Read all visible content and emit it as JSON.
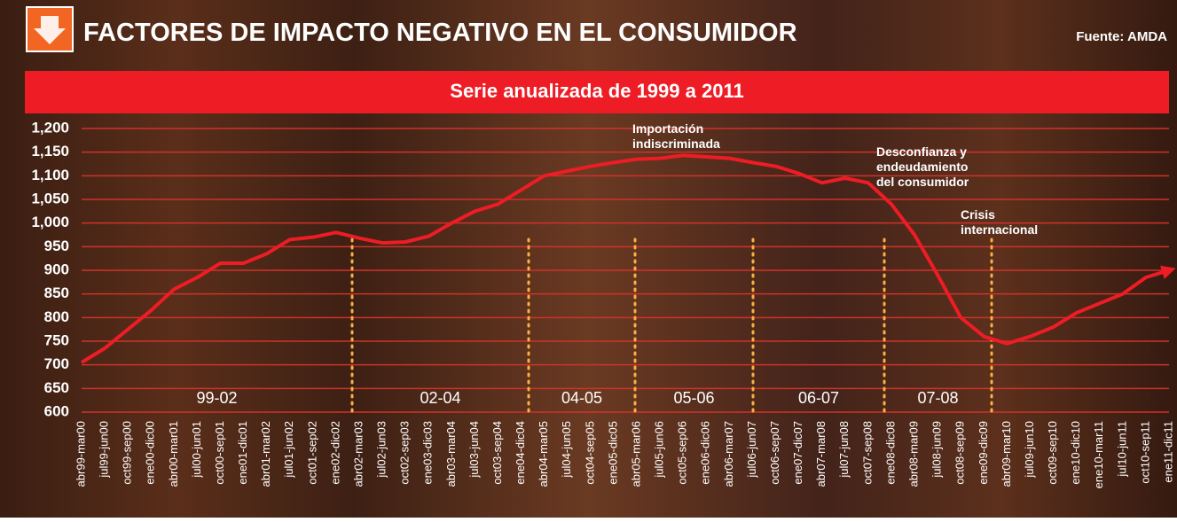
{
  "chart_data": {
    "type": "line",
    "title": "FACTORES DE IMPACTO NEGATIVO EN EL CONSUMIDOR",
    "source": "Fuente: AMDA",
    "subtitle": "Serie anualizada de 1999 a 2011",
    "categories": [
      "abr99-mar00",
      "jul99-jun00",
      "oct99-sep00",
      "ene00-dic00",
      "abr00-mar01",
      "jul00-jun01",
      "oct00-sep01",
      "ene01-dic01",
      "abr01-mar02",
      "jul01-jun02",
      "oct01-sep02",
      "ene02-dic02",
      "abr02-mar03",
      "jul02-jun03",
      "oct02-sep03",
      "ene03-dic03",
      "abr03-mar04",
      "jul03-jun04",
      "oct03-sep04",
      "ene04-dic04",
      "abr04-mar05",
      "jul04-jun05",
      "oct04-sep05",
      "ene05-dic05",
      "abr05-mar06",
      "jul05-jun06",
      "oct05-sep06",
      "ene06-dic06",
      "abr06-mar07",
      "jul06-jun07",
      "oct06-sep07",
      "ene07-dic07",
      "abr07-mar08",
      "jul07-jun08",
      "oct07-sep08",
      "ene08-dic08",
      "abr08-mar09",
      "jul08-jun09",
      "oct08-sep09",
      "ene09-dic09",
      "abr09-mar10",
      "jul09-jun10",
      "oct09-sep10",
      "ene10-dic10",
      "ene10-mar11",
      "jul10-jun11",
      "oct10-sep11",
      "ene11-dic11"
    ],
    "values": [
      705,
      735,
      775,
      815,
      860,
      885,
      915,
      915,
      935,
      965,
      970,
      980,
      968,
      958,
      960,
      972,
      1000,
      1025,
      1040,
      1070,
      1100,
      1110,
      1120,
      1128,
      1135,
      1137,
      1143,
      1140,
      1137,
      1128,
      1120,
      1105,
      1085,
      1095,
      1085,
      1040,
      975,
      890,
      800,
      760,
      745,
      760,
      780,
      810,
      830,
      850,
      885,
      900
    ],
    "color": "#ee1c25",
    "ylim": [
      600,
      1200
    ],
    "yticks": [
      600,
      650,
      700,
      750,
      800,
      850,
      900,
      950,
      {
        "value": 1000,
        "label": "1,000"
      },
      {
        "value": 1050,
        "label": "1,050"
      },
      {
        "value": 1100,
        "label": "1,100"
      },
      {
        "value": 1150,
        "label": "1,150"
      },
      {
        "value": 1200,
        "label": "1,200"
      }
    ],
    "grid": true,
    "periods": [
      "99-02",
      "02-04",
      "04-05",
      "05-06",
      "06-07",
      "07-08"
    ],
    "annotations": [
      [
        "Importación",
        "indiscriminada"
      ],
      [
        "Desconfianza y",
        "endeudamiento",
        "del consumidor"
      ],
      [
        "Crisis",
        "internacional"
      ]
    ]
  }
}
